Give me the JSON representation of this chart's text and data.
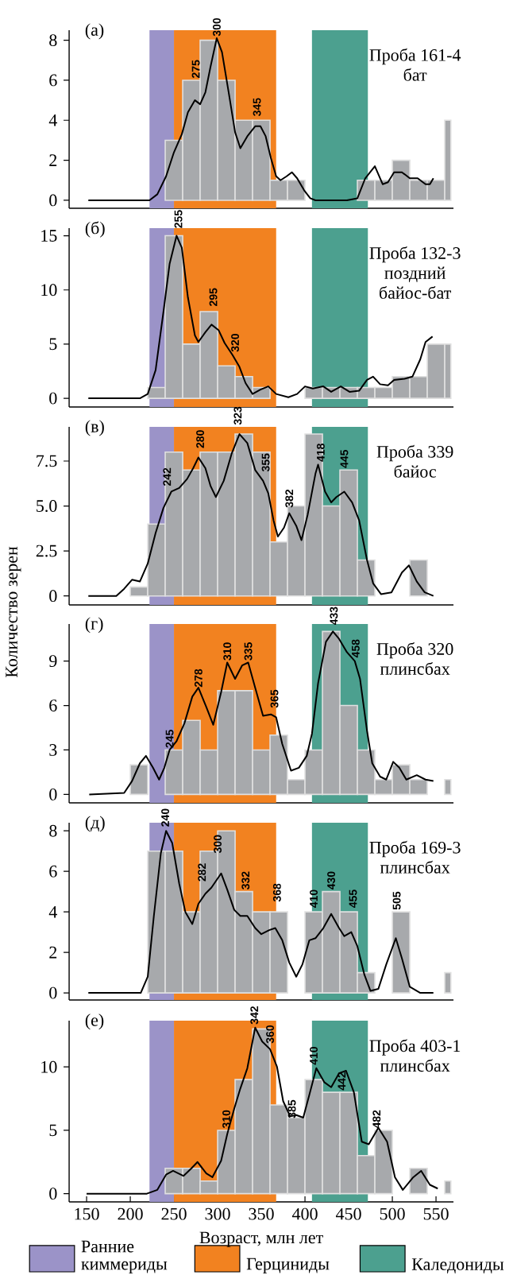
{
  "chart_data": [
    {
      "type": "histogram",
      "title": "(а)",
      "annotations": [
        "Проба 161-4",
        "бат",
        {
          "text": "275",
          "x": 275,
          "y": 6
        },
        {
          "text": "300",
          "x": 299,
          "y": 8.1
        },
        {
          "text": "345",
          "x": 345,
          "y": 4.1
        }
      ],
      "bins": [
        240,
        260,
        280,
        300,
        320,
        340,
        360,
        380,
        400,
        460,
        480,
        500,
        520,
        540,
        560,
        567
      ],
      "xlim": [
        130,
        570
      ],
      "ylim": [
        -0.4,
        8.5
      ],
      "yticks": [
        0,
        2,
        4,
        6,
        8
      ],
      "tick_labels": "y",
      "bands": [
        {
          "axis": "x",
          "from": 222,
          "to": 250,
          "color": "#9b93c8"
        },
        {
          "axis": "x",
          "from": 250,
          "to": 367,
          "color": "#f28220"
        },
        {
          "axis": "x",
          "from": 408,
          "to": 472,
          "color": "#4ca08f"
        }
      ],
      "series": [
        {
          "type": "histogram",
          "color": "#a7a9ac",
          "values": [
            3,
            6,
            8,
            6,
            4,
            4,
            1,
            1,
            0,
            1,
            1,
            2,
            1,
            1,
            4
          ]
        },
        {
          "type": "line",
          "color": "#000000",
          "x": [
            152,
            222,
            231,
            241,
            250,
            259,
            266,
            274,
            280,
            286,
            292,
            299,
            305,
            313,
            320,
            326,
            334,
            343,
            349,
            355,
            361,
            367,
            372,
            379,
            385,
            391,
            399,
            406,
            412,
            448,
            460,
            469,
            480,
            489,
            495,
            502,
            511,
            520,
            529,
            538,
            543,
            547
          ],
          "values": [
            0,
            0,
            0.3,
            1.2,
            2.4,
            3.3,
            4.4,
            5.0,
            4.8,
            5.4,
            6.7,
            8.1,
            7.4,
            5.3,
            3.4,
            2.6,
            3.2,
            3.7,
            3.7,
            3.2,
            2.1,
            1.2,
            1.0,
            1.2,
            1.4,
            1.1,
            0.5,
            0.1,
            0,
            0,
            0.1,
            1.1,
            1.7,
            0.8,
            0.9,
            1.4,
            1.4,
            1.1,
            1.1,
            0.8,
            0.8,
            1.1
          ]
        }
      ]
    },
    {
      "type": "histogram",
      "title": "(б)",
      "annotations": [
        "Проба 132-3",
        "поздний",
        "байос-бат",
        {
          "text": "255",
          "x": 255,
          "y": 15.5
        },
        {
          "text": "295",
          "x": 295,
          "y": 8.3
        },
        {
          "text": "320",
          "x": 320,
          "y": 4.1
        }
      ],
      "bins": [
        220,
        240,
        260,
        280,
        300,
        320,
        340,
        360,
        400,
        420,
        440,
        460,
        480,
        500,
        520,
        540,
        560,
        567
      ],
      "xlim": [
        130,
        570
      ],
      "ylim": [
        -0.8,
        15.7
      ],
      "yticks": [
        0,
        5,
        10,
        15
      ],
      "tick_labels": "y",
      "bands": [
        {
          "axis": "x",
          "from": 222,
          "to": 250,
          "color": "#9b93c8"
        },
        {
          "axis": "x",
          "from": 250,
          "to": 367,
          "color": "#f28220"
        },
        {
          "axis": "x",
          "from": 408,
          "to": 472,
          "color": "#4ca08f"
        }
      ],
      "series": [
        {
          "type": "histogram",
          "color": "#a7a9ac",
          "values": [
            1,
            15,
            5,
            8,
            3,
            2,
            1,
            0,
            1,
            1,
            1,
            1,
            1,
            2,
            2,
            5,
            5
          ]
        },
        {
          "type": "line",
          "color": "#000000",
          "x": [
            152,
            211,
            220,
            229,
            238,
            245,
            253,
            259,
            266,
            274,
            278,
            286,
            293,
            301,
            308,
            317,
            325,
            332,
            340,
            349,
            358,
            367,
            381,
            391,
            400,
            409,
            421,
            430,
            441,
            451,
            462,
            471,
            478,
            486,
            495,
            502,
            514,
            523,
            532,
            538,
            546
          ],
          "values": [
            0,
            0,
            0.4,
            2.6,
            8.0,
            12.4,
            15.0,
            13.9,
            9.3,
            5.8,
            5.2,
            6.1,
            6.8,
            6.3,
            5.1,
            4.0,
            2.9,
            1.4,
            0.4,
            0.8,
            1.1,
            0.4,
            0.1,
            0.4,
            1.1,
            0.9,
            1.1,
            0.6,
            1.1,
            0.6,
            0.7,
            1.7,
            2.0,
            1.3,
            1.2,
            1.7,
            1.8,
            2.0,
            3.6,
            5.2,
            5.7
          ]
        }
      ]
    },
    {
      "type": "histogram",
      "title": "(в)",
      "ylabel": "Количество зерен",
      "annotations": [
        "Проба 339",
        "байос",
        {
          "text": "242",
          "x": 242,
          "y": 6.0
        },
        {
          "text": "280",
          "x": 280,
          "y": 8.1
        },
        {
          "text": "323",
          "x": 323,
          "y": 9.4
        },
        {
          "text": "355",
          "x": 355,
          "y": 6.8
        },
        {
          "text": "382",
          "x": 382,
          "y": 4.8
        },
        {
          "text": "418",
          "x": 418,
          "y": 7.35
        },
        {
          "text": "445",
          "x": 445,
          "y": 7
        }
      ],
      "bins": [
        200,
        220,
        240,
        260,
        280,
        300,
        320,
        340,
        360,
        380,
        400,
        420,
        440,
        460,
        480,
        520,
        540
      ],
      "xlim": [
        130,
        570
      ],
      "ylim": [
        -0.5,
        9.4
      ],
      "yticks": [
        0,
        2.5,
        {
          "value": 5,
          "label": "5.0"
        },
        7.5
      ],
      "tick_labels": "y",
      "bands": [
        {
          "axis": "x",
          "from": 222,
          "to": 250,
          "color": "#9b93c8"
        },
        {
          "axis": "x",
          "from": 250,
          "to": 367,
          "color": "#f28220"
        },
        {
          "axis": "x",
          "from": 408,
          "to": 472,
          "color": "#4ca08f"
        }
      ],
      "series": [
        {
          "type": "histogram",
          "color": "#a7a9ac",
          "values": [
            0.5,
            4,
            8,
            7,
            8,
            8,
            9,
            8,
            3,
            5,
            9,
            5,
            7,
            2,
            0,
            2
          ]
        },
        {
          "type": "line",
          "color": "#000000",
          "x": [
            152,
            184,
            193,
            202,
            211,
            220,
            229,
            238,
            247,
            256,
            265,
            272,
            278,
            286,
            292,
            298,
            307,
            316,
            325,
            334,
            343,
            352,
            358,
            364,
            369,
            376,
            382,
            390,
            396,
            403,
            412,
            415,
            423,
            430,
            436,
            445,
            454,
            462,
            471,
            478,
            487,
            499,
            511,
            519,
            528,
            537,
            547
          ],
          "values": [
            0,
            0,
            0.4,
            0.9,
            0.8,
            1.8,
            3.5,
            4.9,
            5.8,
            6.0,
            6.5,
            7.1,
            7.7,
            7.1,
            6.1,
            5.5,
            6.4,
            7.9,
            9.0,
            8.5,
            7.0,
            6.4,
            5.7,
            4.2,
            3.3,
            3.8,
            4.6,
            3.9,
            3.1,
            4.5,
            6.8,
            7.3,
            5.8,
            5.2,
            5.5,
            5.8,
            5.2,
            4.2,
            2.0,
            0.7,
            0.1,
            0.2,
            1.3,
            1.7,
            0.8,
            0.2,
            0
          ]
        }
      ]
    },
    {
      "type": "histogram",
      "title": "(г)",
      "annotations": [
        "Проба 320",
        "плинсбах",
        {
          "text": "245",
          "x": 245,
          "y": 3
        },
        {
          "text": "278",
          "x": 278,
          "y": 7.1
        },
        {
          "text": "310",
          "x": 311,
          "y": 8.9
        },
        {
          "text": "335",
          "x": 335,
          "y": 8.9
        },
        {
          "text": "365",
          "x": 365,
          "y": 5.7
        },
        {
          "text": "433",
          "x": 433,
          "y": 11.3
        },
        {
          "text": "458",
          "x": 458,
          "y": 9.1
        }
      ],
      "bins": [
        200,
        220,
        240,
        260,
        280,
        300,
        320,
        340,
        360,
        380,
        400,
        420,
        440,
        460,
        480,
        500,
        520,
        540,
        560,
        567
      ],
      "xlim": [
        130,
        570
      ],
      "ylim": [
        -0.57,
        11.5
      ],
      "yticks": [
        0,
        3,
        6,
        9
      ],
      "tick_labels": "y",
      "bands": [
        {
          "axis": "x",
          "from": 222,
          "to": 250,
          "color": "#9b93c8"
        },
        {
          "axis": "x",
          "from": 250,
          "to": 367,
          "color": "#f28220"
        },
        {
          "axis": "x",
          "from": 408,
          "to": 472,
          "color": "#4ca08f"
        }
      ],
      "series": [
        {
          "type": "histogram",
          "color": "#a7a9ac",
          "values": [
            2,
            0,
            3,
            5,
            3,
            7,
            7,
            3,
            4,
            1,
            3,
            11,
            6,
            3,
            1,
            2,
            1,
            0,
            1
          ]
        },
        {
          "type": "line",
          "color": "#000000",
          "x": [
            153,
            193,
            202,
            211,
            218,
            226,
            233,
            239,
            245,
            253,
            262,
            271,
            278,
            287,
            295,
            304,
            311,
            320,
            328,
            335,
            343,
            352,
            361,
            367,
            374,
            384,
            393,
            402,
            408,
            415,
            424,
            432,
            439,
            448,
            457,
            463,
            471,
            477,
            486,
            493,
            501,
            508,
            516,
            528,
            538,
            547
          ],
          "values": [
            0,
            0.1,
            0.9,
            2.1,
            2.6,
            1.8,
            1.0,
            1.8,
            3.0,
            3.6,
            4.8,
            6.6,
            7.2,
            5.9,
            4.7,
            6.9,
            8.9,
            7.8,
            8.7,
            8.9,
            7.2,
            5.3,
            5.4,
            5.2,
            3.4,
            1.6,
            1.8,
            2.6,
            4.1,
            7.5,
            10.3,
            11.0,
            10.5,
            9.6,
            9.0,
            7.8,
            4.3,
            2.1,
            1.2,
            1.0,
            2.2,
            1.8,
            1.0,
            1.3,
            1.0,
            0.9
          ]
        }
      ]
    },
    {
      "type": "histogram",
      "title": "(д)",
      "annotations": [
        "Проба 169-3",
        "плинсбах",
        {
          "text": "240",
          "x": 240,
          "y": 8.1
        },
        {
          "text": "282",
          "x": 282,
          "y": 5.4
        },
        {
          "text": "300",
          "x": 300,
          "y": 6.8
        },
        {
          "text": "332",
          "x": 332,
          "y": 5
        },
        {
          "text": "368",
          "x": 368,
          "y": 4.4
        },
        {
          "text": "410",
          "x": 410,
          "y": 4.1
        },
        {
          "text": "430",
          "x": 430,
          "y": 5
        },
        {
          "text": "455",
          "x": 455,
          "y": 4.1
        },
        {
          "text": "505",
          "x": 505,
          "y": 4
        }
      ],
      "bins": [
        220,
        240,
        260,
        280,
        300,
        320,
        340,
        360,
        380,
        400,
        420,
        440,
        460,
        480,
        500,
        520,
        560,
        567
      ],
      "xlim": [
        130,
        570
      ],
      "ylim": [
        -0.35,
        8.4
      ],
      "yticks": [
        0,
        2,
        4,
        6,
        8
      ],
      "tick_labels": "y",
      "bands": [
        {
          "axis": "x",
          "from": 222,
          "to": 250,
          "color": "#9b93c8"
        },
        {
          "axis": "x",
          "from": 250,
          "to": 367,
          "color": "#f28220"
        },
        {
          "axis": "x",
          "from": 408,
          "to": 472,
          "color": "#4ca08f"
        }
      ],
      "series": [
        {
          "type": "histogram",
          "color": "#a7a9ac",
          "values": [
            7,
            7,
            4,
            7,
            8,
            5,
            4,
            4,
            0,
            4,
            5,
            4,
            1,
            0,
            4,
            0,
            1
          ]
        },
        {
          "type": "line",
          "color": "#000000",
          "x": [
            152,
            212,
            220,
            227,
            235,
            241,
            248,
            256,
            263,
            271,
            278,
            286,
            293,
            304,
            311,
            319,
            326,
            334,
            343,
            350,
            359,
            366,
            374,
            382,
            390,
            397,
            405,
            412,
            421,
            430,
            439,
            445,
            453,
            460,
            468,
            475,
            484,
            493,
            504,
            511,
            520,
            532,
            547
          ],
          "values": [
            0,
            0,
            0.8,
            3.8,
            6.9,
            8.0,
            7.4,
            5.4,
            4.0,
            3.4,
            4.4,
            4.9,
            5.2,
            5.9,
            5.1,
            4.1,
            3.8,
            3.8,
            3.2,
            2.9,
            3.1,
            3.2,
            2.6,
            1.5,
            0.8,
            1.4,
            2.6,
            2.7,
            3.2,
            3.9,
            3.2,
            2.8,
            3.0,
            2.3,
            0.9,
            0.1,
            0.2,
            1.4,
            2.7,
            1.7,
            0.3,
            0,
            0
          ]
        }
      ]
    },
    {
      "type": "histogram",
      "title": "(е)",
      "xlabel": "Возраст, млн лет",
      "legend": "bottom",
      "annotations": [
        "Проба 403-1",
        "плинсбах",
        {
          "text": "310",
          "x": 310,
          "y": 5
        },
        {
          "text": "342",
          "x": 342,
          "y": 13.2
        },
        {
          "text": "360",
          "x": 360,
          "y": 11.7
        },
        {
          "text": "385",
          "x": 385,
          "y": 5.8
        },
        {
          "text": "410",
          "x": 410,
          "y": 10.0
        },
        {
          "text": "442",
          "x": 442,
          "y": 8
        },
        {
          "text": "482",
          "x": 482,
          "y": 5
        }
      ],
      "bins": [
        240,
        260,
        280,
        300,
        320,
        340,
        360,
        380,
        400,
        420,
        440,
        460,
        480,
        500,
        520,
        540,
        560,
        567
      ],
      "xlim": [
        130,
        570
      ],
      "ylim": [
        -0.65,
        13.65
      ],
      "xticks": [
        150,
        200,
        250,
        300,
        350,
        400,
        450,
        500,
        550
      ],
      "yticks": [
        0,
        5,
        10
      ],
      "bands": [
        {
          "axis": "x",
          "from": 222,
          "to": 250,
          "color": "#9b93c8",
          "label": "Ранние киммериды"
        },
        {
          "axis": "x",
          "from": 250,
          "to": 367,
          "color": "#f28220",
          "label": "Герциниды"
        },
        {
          "axis": "x",
          "from": 408,
          "to": 472,
          "color": "#4ca08f",
          "label": "Каледониды"
        }
      ],
      "series": [
        {
          "type": "histogram",
          "color": "#a7a9ac",
          "values": [
            2,
            2,
            1,
            5,
            9,
            13,
            7,
            6,
            9,
            8,
            8,
            3,
            5,
            0,
            2,
            0,
            1
          ]
        },
        {
          "type": "line",
          "color": "#000000",
          "x": [
            150,
            219,
            231,
            241,
            249,
            261,
            270,
            277,
            287,
            294,
            304,
            311,
            319,
            326,
            334,
            343,
            351,
            360,
            368,
            375,
            383,
            390,
            398,
            405,
            413,
            422,
            430,
            439,
            447,
            456,
            465,
            473,
            484,
            494,
            503,
            512,
            524,
            533,
            543,
            552
          ],
          "values": [
            0,
            0,
            0.3,
            1.5,
            1.8,
            1.4,
            2.0,
            2.5,
            1.6,
            1.3,
            2.6,
            4.7,
            6.7,
            8.3,
            9.9,
            13.1,
            12.0,
            11.4,
            10.0,
            7.3,
            6.1,
            6.2,
            6.0,
            7.8,
            9.9,
            8.8,
            8.4,
            9.5,
            9.7,
            8.0,
            4.1,
            3.9,
            5.2,
            4.1,
            1.3,
            0.3,
            1.3,
            1.8,
            0.7,
            0.4
          ]
        }
      ]
    }
  ]
}
